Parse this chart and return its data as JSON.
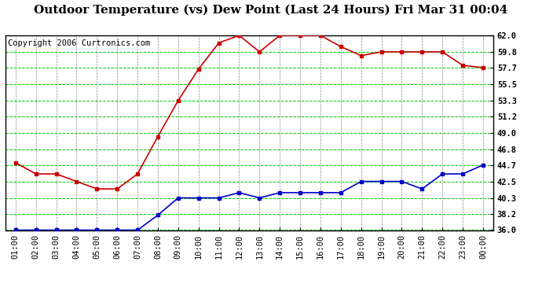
{
  "title": "Outdoor Temperature (vs) Dew Point (Last 24 Hours) Fri Mar 31 00:04",
  "copyright": "Copyright 2006 Curtronics.com",
  "x_labels": [
    "01:00",
    "02:00",
    "03:00",
    "04:00",
    "05:00",
    "06:00",
    "07:00",
    "08:00",
    "09:00",
    "10:00",
    "11:00",
    "12:00",
    "13:00",
    "14:00",
    "15:00",
    "16:00",
    "17:00",
    "18:00",
    "19:00",
    "20:00",
    "21:00",
    "22:00",
    "23:00",
    "00:00"
  ],
  "temp_values": [
    45.0,
    43.5,
    43.5,
    42.5,
    41.5,
    41.5,
    43.5,
    48.5,
    53.3,
    57.5,
    61.0,
    62.0,
    59.8,
    62.0,
    62.0,
    62.0,
    60.5,
    59.3,
    59.8,
    59.8,
    59.8,
    59.8,
    58.0,
    57.7
  ],
  "dew_values": [
    36.0,
    36.0,
    36.0,
    36.0,
    36.0,
    36.0,
    36.0,
    38.0,
    40.3,
    40.3,
    40.3,
    41.0,
    40.3,
    41.0,
    41.0,
    41.0,
    41.0,
    42.5,
    42.5,
    42.5,
    41.5,
    43.5,
    43.5,
    44.7
  ],
  "temp_color": "#cc0000",
  "dew_color": "#0000cc",
  "bg_color": "#ffffff",
  "plot_bg_color": "#ffffff",
  "grid_h_color": "#00cc00",
  "grid_v_color": "#888888",
  "ylim": [
    36.0,
    62.0
  ],
  "yticks": [
    36.0,
    38.2,
    40.3,
    42.5,
    44.7,
    46.8,
    49.0,
    51.2,
    53.3,
    55.5,
    57.7,
    59.8,
    62.0
  ],
  "title_fontsize": 11,
  "copyright_fontsize": 7.5,
  "axis_fontsize": 7.5,
  "marker_size": 2.5,
  "line_width": 1.2
}
